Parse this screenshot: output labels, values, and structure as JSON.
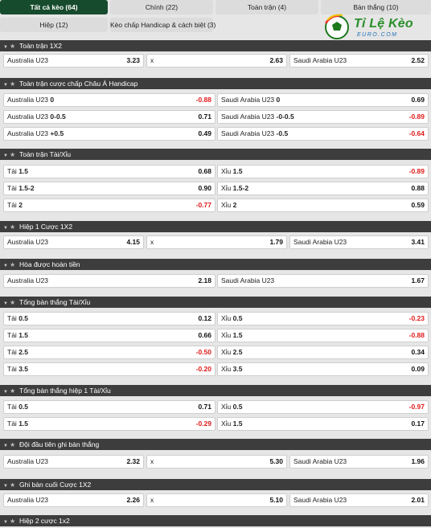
{
  "tabs": [
    {
      "label": "Tất cả kèo (64)",
      "active": true
    },
    {
      "label": "Chính (22)",
      "active": false
    },
    {
      "label": "Toàn trận (4)",
      "active": false
    },
    {
      "label": "Bàn thắng (10)",
      "active": false
    },
    {
      "label": "Hiệp (12)",
      "active": false
    },
    {
      "label": "Kèo chấp Handicap & cách biệt (3)",
      "active": false
    }
  ],
  "logo": {
    "text": "Tỉ Lệ Kèo",
    "sub": "EURO.COM"
  },
  "sections": [
    {
      "title": "Toàn trận 1X2",
      "rows": [
        [
          {
            "label": "Australia U23",
            "odd": "3.23"
          },
          {
            "label": "x",
            "odd": "2.63"
          },
          {
            "label": "Saudi Arabia U23",
            "odd": "2.52"
          }
        ]
      ]
    },
    {
      "title": "Toàn trận cược chấp Châu Á Handicap",
      "rows": [
        [
          {
            "label": "Australia U23",
            "line": "0",
            "odd": "-0.88"
          },
          {
            "label": "Saudi Arabia U23",
            "line": "0",
            "odd": "0.69"
          }
        ],
        [
          {
            "label": "Australia U23",
            "line": "0-0.5",
            "odd": "0.71"
          },
          {
            "label": "Saudi Arabia U23",
            "line": "-0-0.5",
            "odd": "-0.89"
          }
        ],
        [
          {
            "label": "Australia U23",
            "line": "+0.5",
            "odd": "0.49"
          },
          {
            "label": "Saudi Arabia U23",
            "line": "-0.5",
            "odd": "-0.64"
          }
        ]
      ]
    },
    {
      "title": "Toàn trận Tài/Xỉu",
      "rows": [
        [
          {
            "label": "Tài",
            "line": "1.5",
            "odd": "0.68"
          },
          {
            "label": "Xỉu",
            "line": "1.5",
            "odd": "-0.89"
          }
        ],
        [
          {
            "label": "Tài",
            "line": "1.5-2",
            "odd": "0.90"
          },
          {
            "label": "Xỉu",
            "line": "1.5-2",
            "odd": "0.88"
          }
        ],
        [
          {
            "label": "Tài",
            "line": "2",
            "odd": "-0.77"
          },
          {
            "label": "Xỉu",
            "line": "2",
            "odd": "0.59"
          }
        ]
      ]
    },
    {
      "title": "Hiệp 1 Cược 1X2",
      "rows": [
        [
          {
            "label": "Australia U23",
            "odd": "4.15"
          },
          {
            "label": "x",
            "odd": "1.79"
          },
          {
            "label": "Saudi Arabia U23",
            "odd": "3.41"
          }
        ]
      ]
    },
    {
      "title": "Hòa được hoàn tiền",
      "rows": [
        [
          {
            "label": "Australia U23",
            "odd": "2.18"
          },
          {
            "label": "Saudi Arabia U23",
            "odd": "1.67"
          }
        ]
      ]
    },
    {
      "title": "Tổng bàn thắng Tài/Xỉu",
      "rows": [
        [
          {
            "label": "Tài",
            "line": "0.5",
            "odd": "0.12"
          },
          {
            "label": "Xỉu",
            "line": "0.5",
            "odd": "-0.23"
          }
        ],
        [
          {
            "label": "Tài",
            "line": "1.5",
            "odd": "0.66"
          },
          {
            "label": "Xỉu",
            "line": "1.5",
            "odd": "-0.88"
          }
        ],
        [
          {
            "label": "Tài",
            "line": "2.5",
            "odd": "-0.50"
          },
          {
            "label": "Xỉu",
            "line": "2.5",
            "odd": "0.34"
          }
        ],
        [
          {
            "label": "Tài",
            "line": "3.5",
            "odd": "-0.20"
          },
          {
            "label": "Xỉu",
            "line": "3.5",
            "odd": "0.09"
          }
        ]
      ]
    },
    {
      "title": "Tổng bàn thắng hiệp 1 Tài/Xỉu",
      "rows": [
        [
          {
            "label": "Tài",
            "line": "0.5",
            "odd": "0.71"
          },
          {
            "label": "Xỉu",
            "line": "0.5",
            "odd": "-0.97"
          }
        ],
        [
          {
            "label": "Tài",
            "line": "1.5",
            "odd": "-0.29"
          },
          {
            "label": "Xỉu",
            "line": "1.5",
            "odd": "0.17"
          }
        ]
      ]
    },
    {
      "title": "Đội đầu tiên ghi bàn thắng",
      "rows": [
        [
          {
            "label": "Australia U23",
            "odd": "2.32"
          },
          {
            "label": "x",
            "odd": "5.30"
          },
          {
            "label": "Saudi Arabia U23",
            "odd": "1.96"
          }
        ]
      ]
    },
    {
      "title": "Ghi bàn cuối Cược 1X2",
      "rows": [
        [
          {
            "label": "Australia U23",
            "odd": "2.26"
          },
          {
            "label": "x",
            "odd": "5.10"
          },
          {
            "label": "Saudi Arabia U23",
            "odd": "2.01"
          }
        ]
      ]
    },
    {
      "title": "Hiệp 2 cược 1x2",
      "rows": []
    }
  ],
  "colors": {
    "active_tab": "#174b2e",
    "section_header": "#3d3d3d",
    "negative": "#e01a1a"
  }
}
